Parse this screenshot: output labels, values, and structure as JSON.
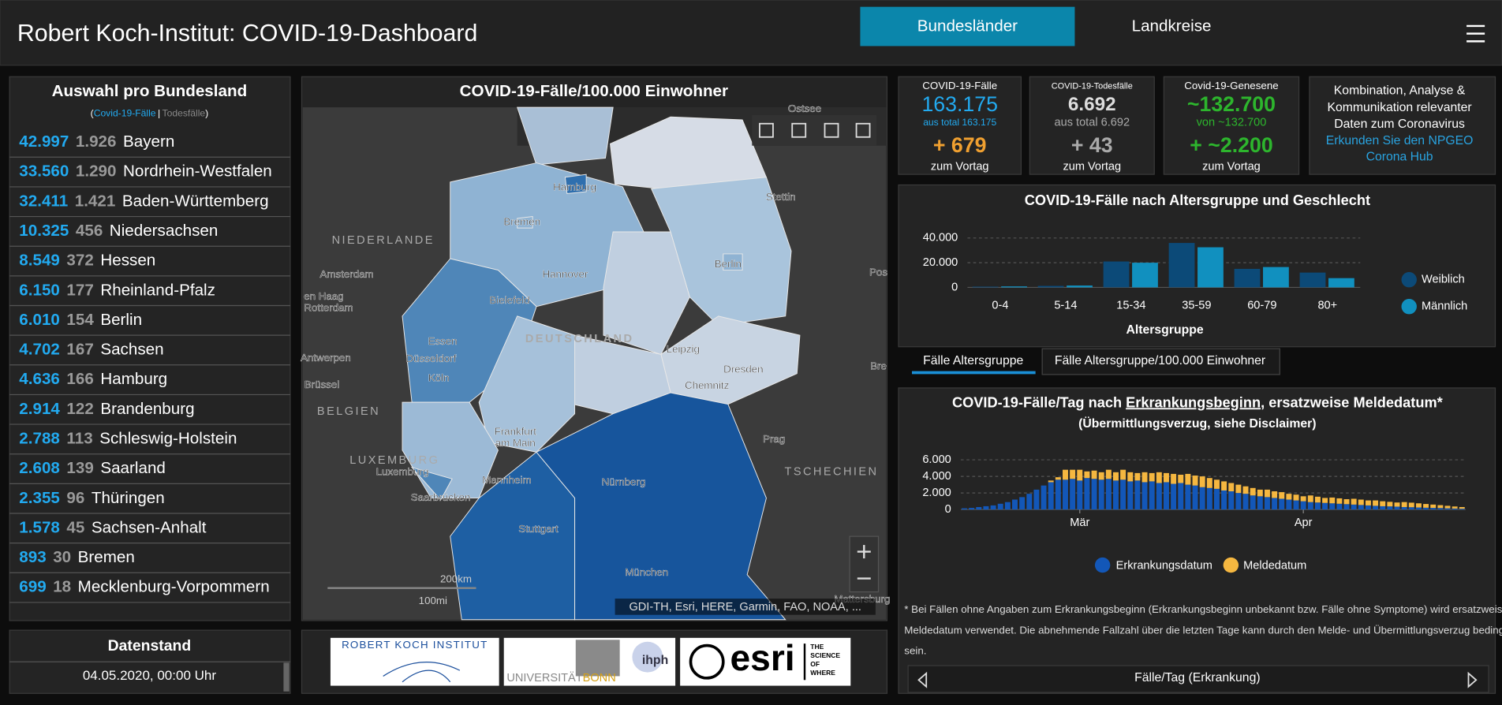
{
  "header": {
    "title": "Robert Koch-Institut: COVID-19-Dashboard",
    "tabs": [
      "Bundesländer",
      "Landkreise"
    ]
  },
  "states_panel": {
    "title": "Auswahl pro Bundesland",
    "legend": [
      "(",
      "Covid-19-Fälle",
      "|",
      "Todesfälle",
      ")"
    ],
    "rows": [
      {
        "cases": "42.997",
        "deaths": "1.926",
        "name": "Bayern"
      },
      {
        "cases": "33.560",
        "deaths": "1.290",
        "name": "Nordrhein-Westfalen"
      },
      {
        "cases": "32.411",
        "deaths": "1.421",
        "name": "Baden-Württemberg"
      },
      {
        "cases": "10.325",
        "deaths": "456",
        "name": "Niedersachsen"
      },
      {
        "cases": "8.549",
        "deaths": "372",
        "name": "Hessen"
      },
      {
        "cases": "6.150",
        "deaths": "177",
        "name": "Rheinland-Pfalz"
      },
      {
        "cases": "6.010",
        "deaths": "154",
        "name": "Berlin"
      },
      {
        "cases": "4.702",
        "deaths": "167",
        "name": "Sachsen"
      },
      {
        "cases": "4.636",
        "deaths": "166",
        "name": "Hamburg"
      },
      {
        "cases": "2.914",
        "deaths": "122",
        "name": "Brandenburg"
      },
      {
        "cases": "2.788",
        "deaths": "113",
        "name": "Schleswig-Holstein"
      },
      {
        "cases": "2.608",
        "deaths": "139",
        "name": "Saarland"
      },
      {
        "cases": "2.355",
        "deaths": "96",
        "name": "Thüringen"
      },
      {
        "cases": "1.578",
        "deaths": "45",
        "name": "Sachsen-Anhalt"
      },
      {
        "cases": "893",
        "deaths": "30",
        "name": "Bremen"
      },
      {
        "cases": "699",
        "deaths": "18",
        "name": "Mecklenburg-Vorpommern"
      }
    ]
  },
  "datenstand": {
    "title": "Datenstand",
    "value": "04.05.2020, 00:00 Uhr"
  },
  "map": {
    "title": "COVID-19-Fälle/100.000 Einwohner",
    "labels": [
      "Ostsee",
      "Hamburg",
      "Stettin",
      "Bremen",
      "NIEDERLANDE",
      "Hannover",
      "Berlin",
      "Amsterdam",
      "Pos",
      "Bielefeld",
      "en Haag",
      "Rotterdam",
      "DEUTSCHLAND",
      "Essen",
      "Leipzig",
      "Düsseldorf",
      "Antwerpen",
      "Dresden",
      "Bre",
      "Köln",
      "Brüssel",
      "Chemnitz",
      "BELGIEN",
      "Frankfurt",
      "am Main",
      "Prag",
      "LUXEMBURG",
      "Luxemburg",
      "TSCHECHIEN",
      "Mannheim",
      "Nürnberg",
      "Saarbrücken",
      "Stuttgart",
      "München",
      "Mattersburg"
    ],
    "scale": [
      "200km",
      "100mi"
    ],
    "attribution": "GDI-TH, Esri, HERE, Garmin, FAO, NOAA, ..."
  },
  "kpis": [
    {
      "title": "COVID-19-Fälle",
      "value": "163.175",
      "sub": "aus total 163.175",
      "delta": "+ 679",
      "delta_label": "zum Vortag"
    },
    {
      "title": "COVID-19-Todesfälle",
      "value": "6.692",
      "sub": "aus total 6.692",
      "delta": "+ 43",
      "delta_label": "zum Vortag"
    },
    {
      "title": "Covid-19-Genesene",
      "value": "~132.700",
      "sub": "von ~132.700",
      "delta": "+ ~2.200",
      "delta_label": "zum Vortag"
    }
  ],
  "hub": {
    "lines": [
      "Kombination, Analyse &",
      "Kommunikation relevanter",
      "Daten zum Coronavirus"
    ],
    "link": [
      "Erkunden Sie den NPGEO",
      "Corona Hub"
    ]
  },
  "age_chart": {
    "type": "bar",
    "title": "COVID-19-Fälle nach Altersgruppe und Geschlecht",
    "categories": [
      "0-4",
      "5-14",
      "15-34",
      "35-59",
      "60-79",
      "80+"
    ],
    "series": [
      {
        "name": "Weiblich",
        "color": "#0c4a78",
        "values": [
          600,
          1200,
          21000,
          36000,
          15000,
          12000
        ]
      },
      {
        "name": "Männlich",
        "color": "#1190bf",
        "values": [
          800,
          1500,
          20000,
          32500,
          16500,
          7500
        ]
      }
    ],
    "ylim": [
      0,
      45000
    ],
    "yticks": [
      0,
      {
        "value": 20000,
        "label": "20.000"
      },
      {
        "value": 40000,
        "label": "40.000"
      }
    ],
    "x_label": "Altersgruppe",
    "tabs": [
      "Fälle Altersgruppe",
      "Fälle Altersgruppe/100.000 Einwohner"
    ]
  },
  "daily_chart": {
    "type": "stacked-bar",
    "title": [
      "COVID-19-Fälle/Tag nach ",
      "Erkrankungsbeginn",
      ", ersatzweise Meldedatum*"
    ],
    "subtitle": "(Übermittlungsverzug, siehe Disclaimer)",
    "categories": [
      null,
      null,
      null,
      null,
      null,
      null,
      null,
      null,
      null,
      null,
      null,
      null,
      null,
      null,
      null,
      null,
      "Mär",
      null,
      null,
      null,
      null,
      null,
      null,
      null,
      null,
      null,
      null,
      null,
      null,
      null,
      null,
      null,
      null,
      null,
      null,
      null,
      null,
      null,
      null,
      null,
      null,
      null,
      null,
      null,
      null,
      null,
      null,
      "Apr",
      null,
      null,
      null,
      null,
      null,
      null,
      null,
      null,
      null,
      null,
      null,
      null,
      null,
      null,
      null,
      null,
      null,
      null,
      null,
      null,
      null,
      null
    ],
    "series": [
      {
        "name": "Erkrankungsdatum",
        "color": "#1357b8",
        "values": [
          150,
          200,
          300,
          400,
          500,
          700,
          900,
          1200,
          1500,
          1900,
          2400,
          2900,
          3300,
          3600,
          3600,
          3700,
          3500,
          3800,
          3700,
          3600,
          3700,
          3500,
          3600,
          3400,
          3500,
          3300,
          3400,
          3200,
          3300,
          3100,
          3200,
          3000,
          2900,
          2700,
          2600,
          2500,
          2300,
          2200,
          2000,
          1900,
          1700,
          1600,
          1500,
          1400,
          1300,
          1200,
          1100,
          1000,
          900,
          850,
          800,
          750,
          700,
          650,
          600,
          550,
          500,
          450,
          400,
          380,
          350,
          300,
          280,
          250,
          220,
          200,
          180,
          150,
          120,
          100
        ]
      },
      {
        "name": "Meldedatum",
        "color": "#f5b740",
        "values": [
          0,
          0,
          0,
          0,
          0,
          0,
          0,
          0,
          0,
          0,
          0,
          0,
          200,
          300,
          1200,
          1100,
          1300,
          800,
          1000,
          900,
          1100,
          1000,
          1200,
          1100,
          900,
          1200,
          1000,
          1300,
          1100,
          1200,
          1000,
          1300,
          1200,
          1300,
          1200,
          1100,
          1100,
          1000,
          1000,
          900,
          900,
          800,
          900,
          800,
          800,
          700,
          700,
          600,
          800,
          700,
          600,
          700,
          650,
          600,
          700,
          650,
          600,
          650,
          600,
          550,
          500,
          600,
          550,
          500,
          450,
          400,
          350,
          300,
          250,
          200
        ]
      }
    ],
    "ylim": [
      0,
      6700
    ],
    "yticks": [
      0,
      {
        "value": 2000,
        "label": "2.000"
      },
      {
        "value": 4000,
        "label": "4.000"
      },
      {
        "value": 6000,
        "label": "6.000"
      }
    ],
    "footnote": [
      "* Bei Fällen ohne Angaben zum Erkrankungsbeginn (Erkrankungsbeginn unbekannt bzw. Fälle ohne Symptome) wird ersatzweise das",
      "Meldedatum verwendet. Die abnehmende Fallzahl über die letzten Tage kann durch den Melde- und Übermittlungsverzug bedingt",
      "sein."
    ],
    "footer_label": "Fälle/Tag (Erkrankung)"
  },
  "logos": {
    "rki": "ROBERT KOCH INSTITUT",
    "bonn": [
      "UNIVERSITÄT",
      "BONN"
    ],
    "ihph": "ihph",
    "esri": "esri",
    "esri_tag": [
      "THE",
      "SCIENCE",
      "OF",
      "WHERE"
    ]
  }
}
